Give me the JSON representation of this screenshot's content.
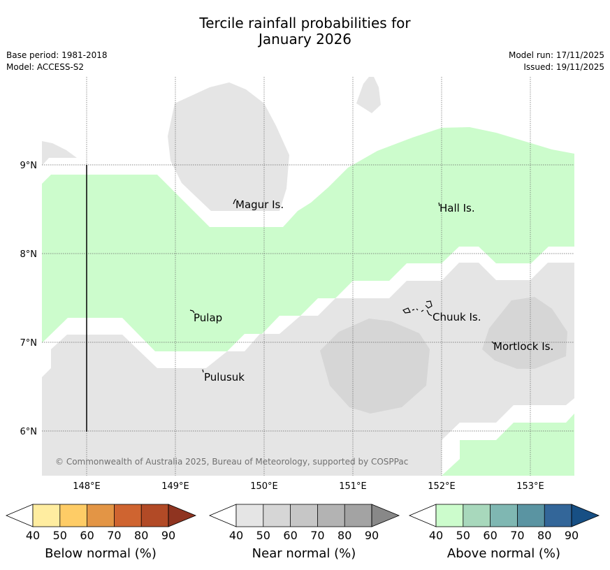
{
  "title_line1": "Tercile rainfall probabilities for",
  "title_line2": "January 2026",
  "meta_left": {
    "base_period": "Base period: 1981-2018",
    "model": "Model: ACCESS-S2"
  },
  "meta_right": {
    "model_run": "Model run: 17/11/2025",
    "issued": "Issued: 19/11/2025"
  },
  "map": {
    "lon_ticks": [
      "148°E",
      "149°E",
      "150°E",
      "151°E",
      "152°E",
      "153°E"
    ],
    "lat_ticks": [
      "9°N",
      "8°N",
      "7°N",
      "6°N"
    ],
    "places": [
      "Magur Is.",
      "Hall Is.",
      "Pulap",
      "Chuuk Is.",
      "Mortlock Is.",
      "Pulusuk"
    ],
    "copyright": "© Commonwealth of Australia 2025, Bureau of Meteorology, supported by COSPPac",
    "colors": {
      "near_40": "#e5e5e5",
      "near_50": "#d6d6d6",
      "above_40": "#ccfccc",
      "coast": "#000000"
    }
  },
  "colorbars": [
    {
      "label": "Below normal (%)",
      "ticks": [
        "40",
        "50",
        "60",
        "70",
        "80",
        "90"
      ],
      "colors": [
        "#ffffff",
        "#ffeda0",
        "#fecc66",
        "#e39545",
        "#cf6430",
        "#b24a26",
        "#8f3420"
      ]
    },
    {
      "label": "Near normal (%)",
      "ticks": [
        "40",
        "50",
        "60",
        "70",
        "80",
        "90"
      ],
      "colors": [
        "#ffffff",
        "#e5e5e5",
        "#d6d6d6",
        "#c6c6c6",
        "#b3b3b3",
        "#a3a3a3",
        "#888888"
      ]
    },
    {
      "label": "Above normal (%)",
      "ticks": [
        "40",
        "50",
        "60",
        "70",
        "80",
        "90"
      ],
      "colors": [
        "#ffffff",
        "#ccfccc",
        "#a8d8bc",
        "#7fb7b2",
        "#5a94a2",
        "#336699",
        "#174f84"
      ]
    }
  ]
}
